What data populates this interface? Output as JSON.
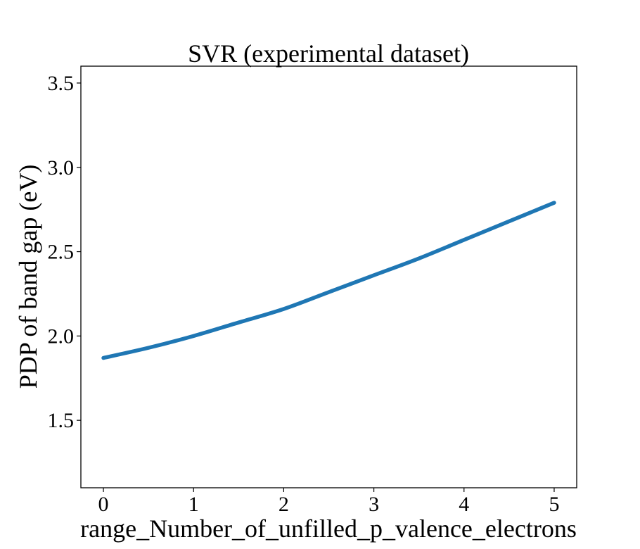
{
  "chart_data": {
    "type": "line",
    "title": "SVR (experimental dataset)",
    "xlabel": "range_Number_of_unfilled_p_valence_electrons",
    "ylabel": "PDP of band gap (eV)",
    "xlim": [
      -0.25,
      5.25
    ],
    "ylim": [
      1.1,
      3.6
    ],
    "xticks": [
      0,
      1,
      2,
      3,
      4,
      5
    ],
    "xtick_labels": [
      "0",
      "1",
      "2",
      "3",
      "4",
      "5"
    ],
    "yticks": [
      1.5,
      2.0,
      2.5,
      3.0,
      3.5
    ],
    "ytick_labels": [
      "1.5",
      "2.0",
      "2.5",
      "3.0",
      "3.5"
    ],
    "grid": false,
    "series": [
      {
        "color": "#1f77b4",
        "x": [
          0,
          0.5,
          1,
          1.5,
          2,
          2.5,
          3,
          3.5,
          4,
          4.5,
          5
        ],
        "y": [
          1.87,
          1.93,
          2.0,
          2.08,
          2.16,
          2.26,
          2.36,
          2.46,
          2.57,
          2.68,
          2.79
        ]
      }
    ]
  }
}
